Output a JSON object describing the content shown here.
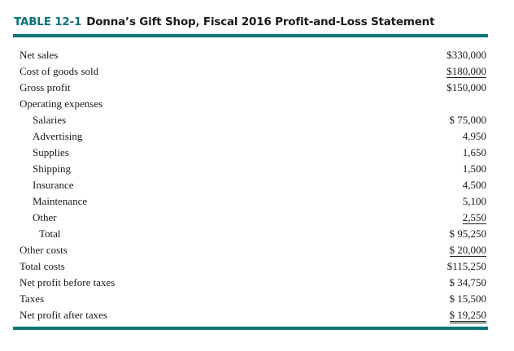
{
  "title": {
    "number": "TABLE 12-1",
    "text": "Donna’s Gift Shop, Fiscal 2016 Profit-and-Loss Statement"
  },
  "rows": [
    {
      "label": "Net sales",
      "value": "$330,000"
    },
    {
      "label": "Cost of goods sold",
      "value": "$180,000"
    },
    {
      "label": "Gross profit",
      "value": "$150,000"
    },
    {
      "label": "Operating expenses",
      "value": ""
    },
    {
      "label": "Salaries",
      "value": "$ 75,000"
    },
    {
      "label": "Advertising",
      "value": "4,950"
    },
    {
      "label": "Supplies",
      "value": "1,650"
    },
    {
      "label": "Shipping",
      "value": "1,500"
    },
    {
      "label": "Insurance",
      "value": "4,500"
    },
    {
      "label": "Maintenance",
      "value": "5,100"
    },
    {
      "label": "Other",
      "value": "2,550"
    },
    {
      "label": "Total",
      "value": "$ 95,250"
    },
    {
      "label": "Other costs",
      "value": "$ 20,000"
    },
    {
      "label": "Total costs",
      "value": "$115,250"
    },
    {
      "label": "Net profit before taxes",
      "value": "$ 34,750"
    },
    {
      "label": "Taxes",
      "value": "$ 15,500"
    },
    {
      "label": "Net profit after taxes",
      "value": "$ 19,250"
    }
  ],
  "colors": {
    "accent": "#0b7479"
  }
}
